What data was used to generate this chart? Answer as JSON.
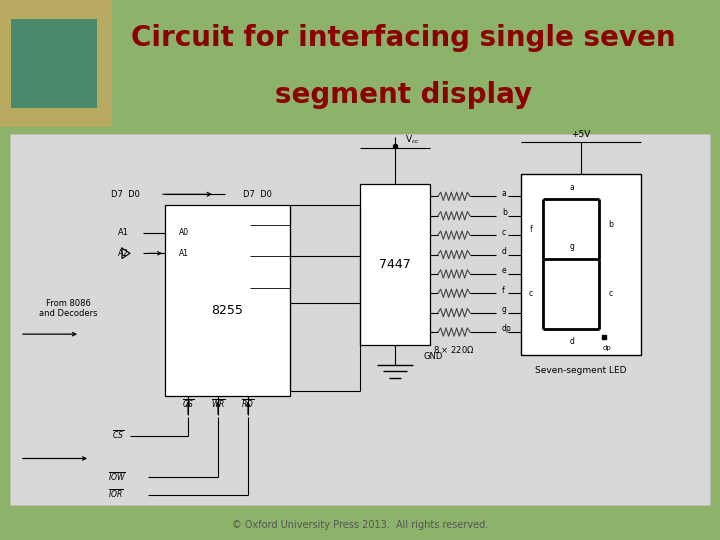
{
  "title_line1": "Circuit for interfacing single seven",
  "title_line2": "segment display",
  "title_color": "#8B0000",
  "header_bg_color": "#8DB36B",
  "body_bg_color": "#D8D8D8",
  "footer_text": "© Oxford University Press 2013.  All rights reserved.",
  "footer_color": "#555555",
  "footer_fontsize": 7,
  "title_fontsize": 20
}
